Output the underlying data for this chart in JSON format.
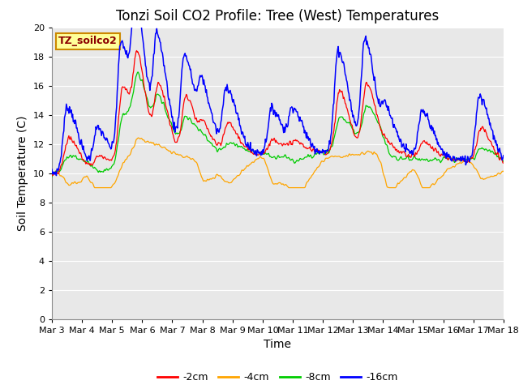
{
  "title": "Tonzi Soil CO2 Profile: Tree (West) Temperatures",
  "ylabel": "Soil Temperature (C)",
  "xlabel": "Time",
  "ylim": [
    0,
    20
  ],
  "yticks": [
    0,
    2,
    4,
    6,
    8,
    10,
    12,
    14,
    16,
    18,
    20
  ],
  "xtick_labels": [
    "Mar 3",
    "Mar 4",
    "Mar 5",
    "Mar 6",
    "Mar 7",
    "Mar 8",
    "Mar 9",
    "Mar 10",
    "Mar 11",
    "Mar 12",
    "Mar 13",
    "Mar 14",
    "Mar 15",
    "Mar 16",
    "Mar 17",
    "Mar 18"
  ],
  "legend_label": "TZ_soilco2",
  "series_labels": [
    "-2cm",
    "-4cm",
    "-8cm",
    "-16cm"
  ],
  "colors": [
    "#ff0000",
    "#ffa500",
    "#00cc00",
    "#0000ff"
  ],
  "plot_bg": "#e8e8e8",
  "fig_bg": "#ffffff",
  "grid_color": "#ffffff",
  "title_fontsize": 12,
  "axis_fontsize": 10,
  "tick_fontsize": 8,
  "legend_fontsize": 9,
  "annotation_fontsize": 9
}
